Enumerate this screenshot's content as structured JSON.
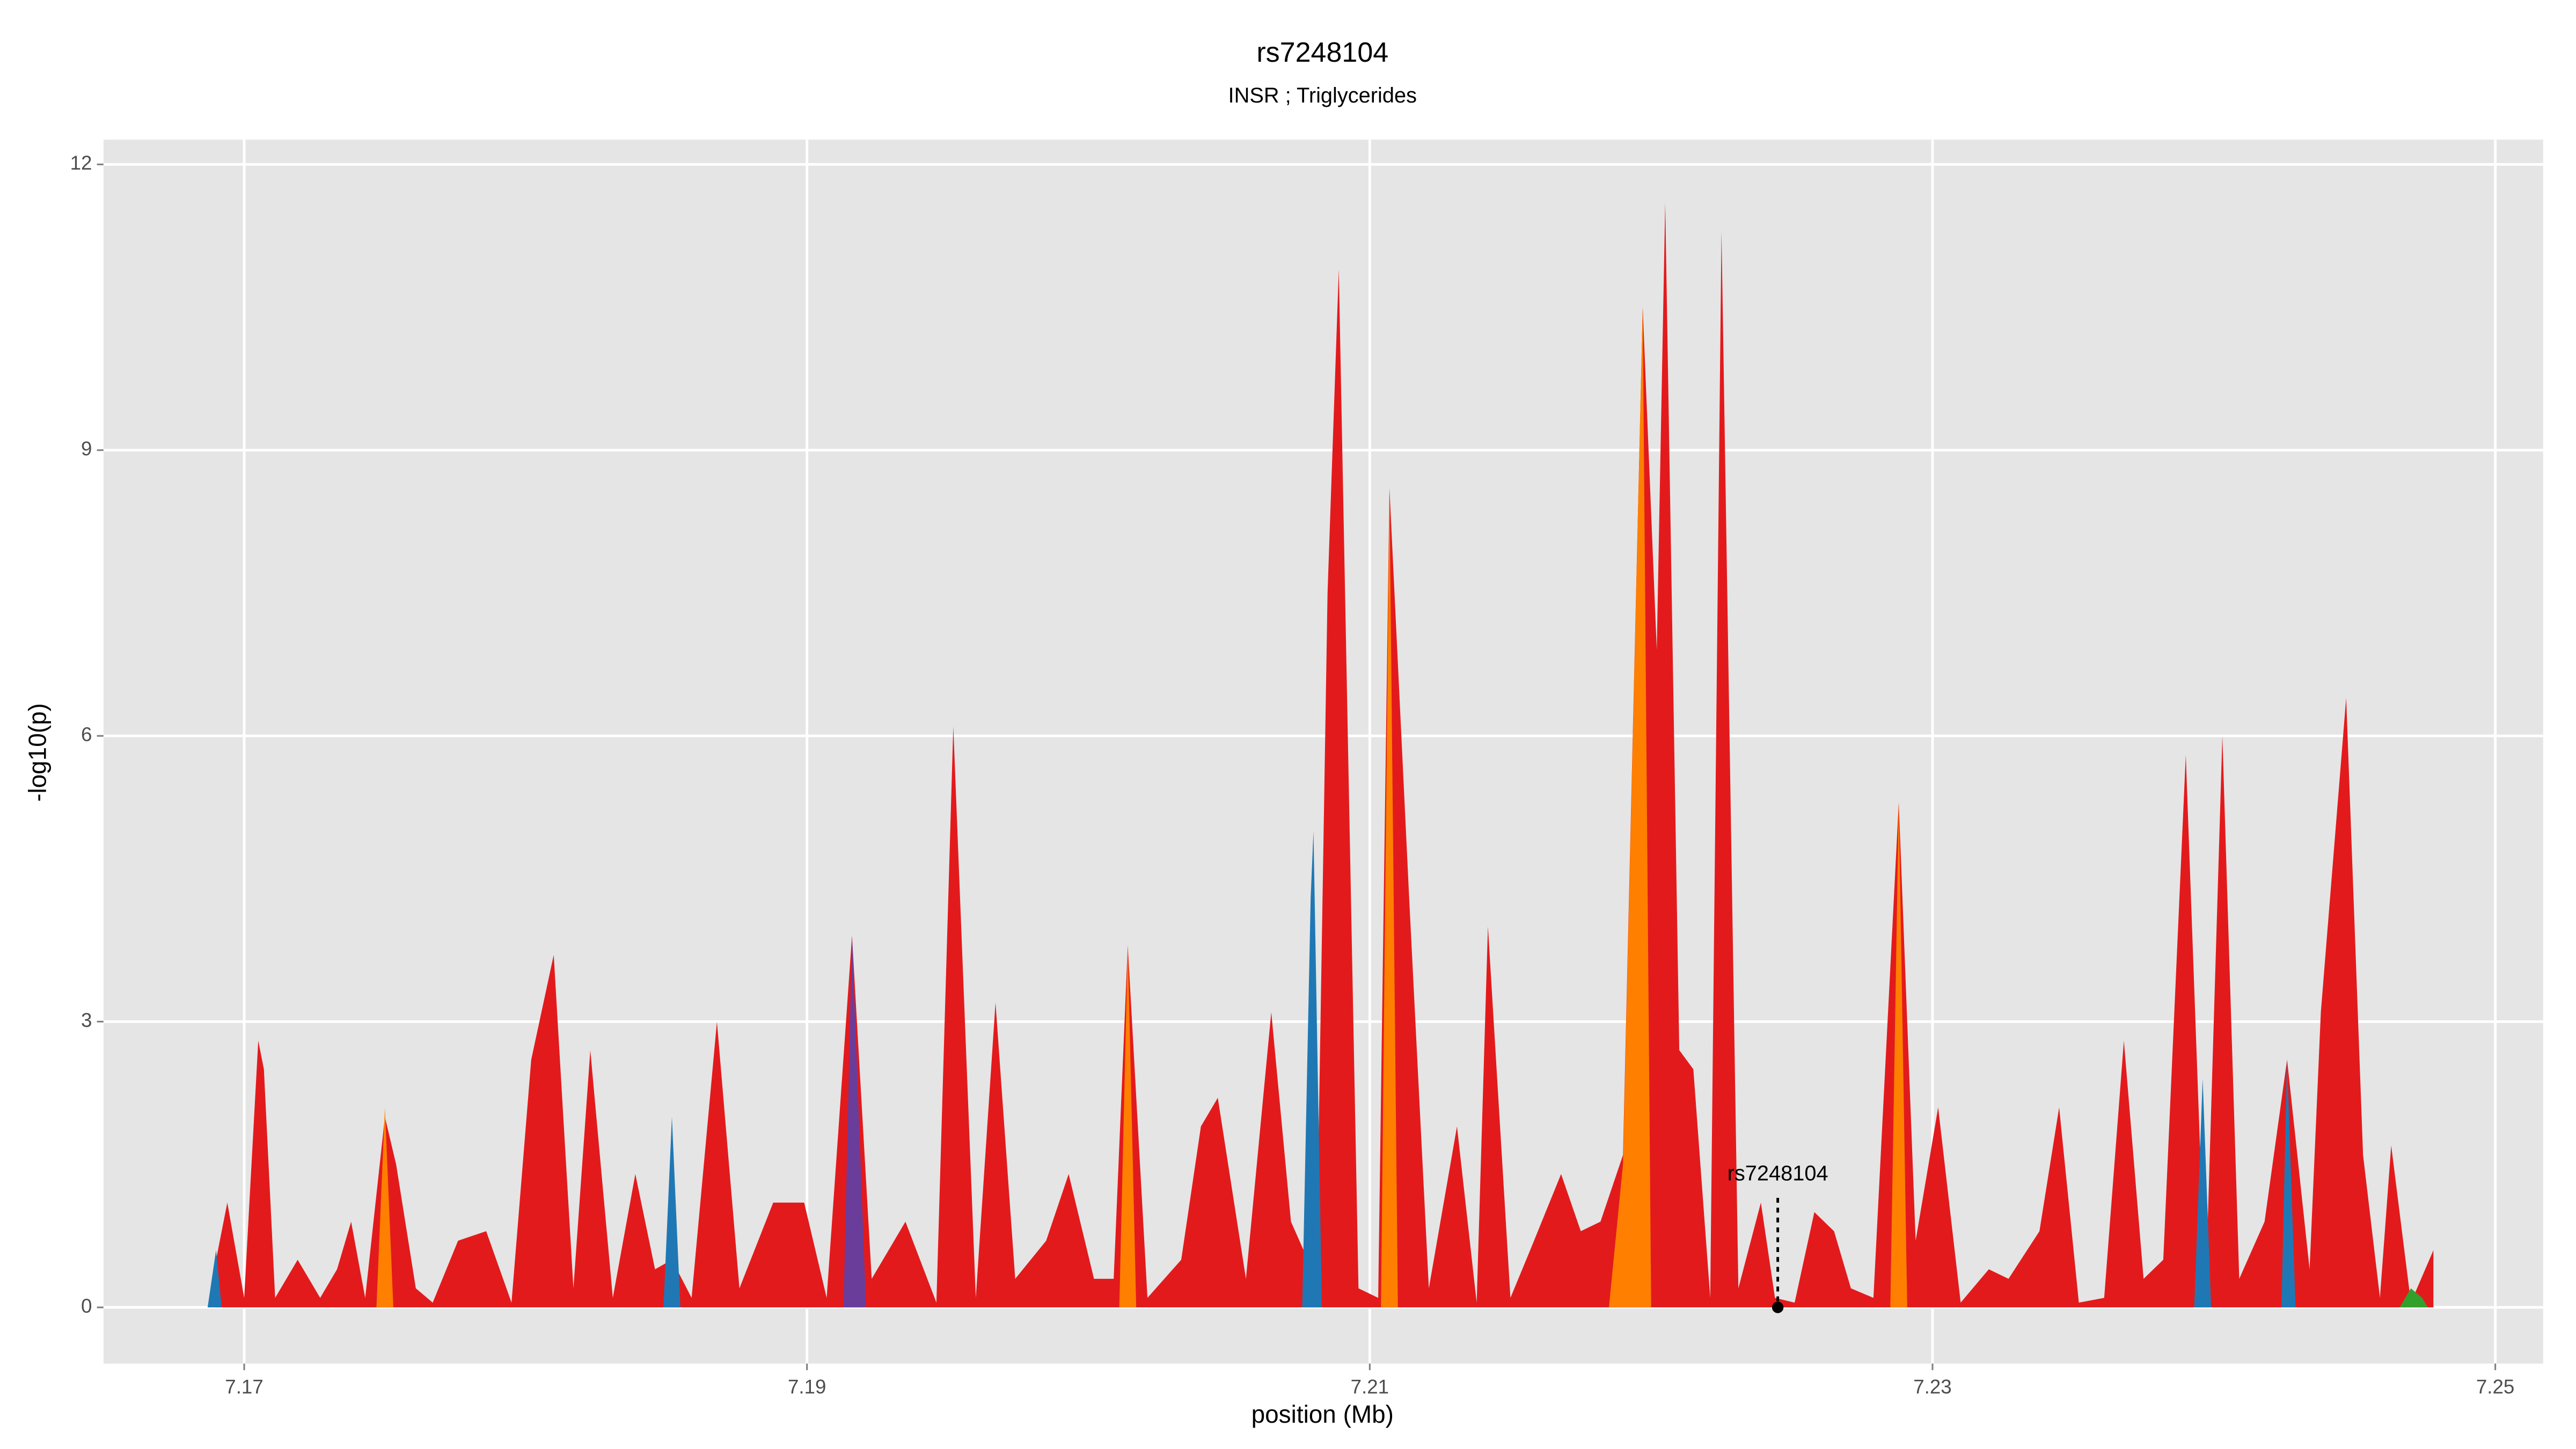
{
  "chart_data": {
    "type": "area",
    "title": "rs7248104",
    "subtitle": "INSR ; Triglycerides",
    "xlabel": "position (Mb)",
    "ylabel": "-log10(p)",
    "xlim": [
      7.165,
      7.2517
    ],
    "ylim": [
      -0.59,
      12.26
    ],
    "xticks": [
      7.17,
      7.19,
      7.21,
      7.23,
      7.25
    ],
    "yticks": [
      0,
      3,
      6,
      9,
      12
    ],
    "grid": true,
    "annotation": {
      "text": "rs7248104",
      "x": 7.2245,
      "y": 1.15
    },
    "series": [
      {
        "color": "#e31a1c",
        "x": [
          7.169,
          7.1694,
          7.17,
          7.1705,
          7.1707,
          7.1711,
          7.1719,
          7.1727,
          7.1733,
          7.1738,
          7.1743,
          7.175,
          7.1754,
          7.1761,
          7.1767,
          7.1776,
          7.1786,
          7.1795,
          7.1802,
          7.181,
          7.1817,
          7.1823,
          7.1831,
          7.1839,
          7.1846,
          7.1852,
          7.1859,
          7.1868,
          7.1876,
          7.1888,
          7.1899,
          7.1907,
          7.1916,
          7.1923,
          7.1935,
          7.1946,
          7.1952,
          7.196,
          7.1967,
          7.1974,
          7.1985,
          7.1993,
          7.2002,
          7.2009,
          7.2014,
          7.2021,
          7.2033,
          7.204,
          7.2046,
          7.2056,
          7.2065,
          7.2072,
          7.2081,
          7.2085,
          7.2089,
          7.2096,
          7.2103,
          7.2107,
          7.2114,
          7.2121,
          7.2131,
          7.2138,
          7.2142,
          7.215,
          7.2157,
          7.2168,
          7.2175,
          7.2182,
          7.219,
          7.2197,
          7.2202,
          7.2205,
          7.221,
          7.2215,
          7.2221,
          7.2225,
          7.2231,
          7.2239,
          7.2244,
          7.2251,
          7.2258,
          7.2265,
          7.2271,
          7.2279,
          7.2288,
          7.2294,
          7.2302,
          7.231,
          7.232,
          7.2327,
          7.2338,
          7.2345,
          7.2352,
          7.2361,
          7.2368,
          7.2375,
          7.2382,
          7.239,
          7.2397,
          7.2403,
          7.2409,
          7.2418,
          7.2426,
          7.2434,
          7.2438,
          7.2447,
          7.2453,
          7.2459,
          7.2463,
          7.247,
          7.2478
        ],
        "values": [
          0.5,
          1.1,
          0.1,
          2.8,
          2.5,
          0.1,
          0.5,
          0.1,
          0.4,
          0.9,
          0.1,
          2.0,
          1.5,
          0.2,
          0.05,
          0.7,
          0.8,
          0.05,
          2.6,
          3.7,
          0.2,
          2.7,
          0.1,
          1.4,
          0.4,
          0.5,
          0.1,
          3.0,
          0.2,
          1.1,
          1.1,
          0.1,
          3.9,
          0.3,
          0.9,
          0.05,
          6.1,
          0.1,
          3.2,
          0.3,
          0.7,
          1.4,
          0.3,
          0.3,
          3.8,
          0.1,
          0.5,
          1.9,
          2.2,
          0.3,
          3.1,
          0.9,
          0.3,
          7.5,
          10.9,
          0.2,
          0.1,
          8.6,
          4.3,
          0.2,
          1.9,
          0.05,
          4.0,
          0.1,
          0.6,
          1.4,
          0.8,
          0.9,
          1.6,
          10.5,
          6.9,
          11.6,
          2.7,
          2.5,
          0.1,
          11.3,
          0.2,
          1.1,
          0.1,
          0.05,
          1.0,
          0.8,
          0.2,
          0.1,
          5.3,
          0.7,
          2.1,
          0.05,
          0.4,
          0.3,
          0.8,
          2.1,
          0.05,
          0.1,
          2.8,
          0.3,
          0.5,
          5.8,
          0.1,
          6.0,
          0.3,
          0.9,
          2.6,
          0.4,
          3.1,
          6.4,
          1.6,
          0.1,
          1.7,
          0.05,
          0.6
        ]
      },
      {
        "color": "#ff7f00",
        "x": [
          7.1747,
          7.175,
          7.1753,
          7.178,
          7.2011,
          7.2014,
          7.2017,
          7.206,
          7.2104,
          7.2107,
          7.211,
          7.215,
          7.2185,
          7.219,
          7.2197,
          7.22,
          7.224,
          7.2285,
          7.2288,
          7.2291
        ],
        "values": [
          0,
          2.1,
          0,
          null,
          0,
          3.8,
          0,
          null,
          0,
          8.6,
          0,
          null,
          0,
          1.5,
          10.5,
          0,
          null,
          0,
          5.3,
          0
        ]
      },
      {
        "color": "#1f78b4",
        "x": [
          7.1687,
          7.169,
          7.1692,
          7.177,
          7.1849,
          7.1852,
          7.1855,
          7.196,
          7.2076,
          7.2079,
          7.208,
          7.2083,
          7.23,
          7.2393,
          7.2396,
          7.2399,
          7.241,
          7.2424,
          7.2426,
          7.2429
        ],
        "values": [
          0,
          0.6,
          0,
          null,
          0,
          2.0,
          0,
          null,
          0,
          4.3,
          5.0,
          0,
          null,
          0,
          2.4,
          0,
          null,
          0,
          2.6,
          0
        ]
      },
      {
        "color": "#6a3d9a",
        "x": [
          7.1913,
          7.1916,
          7.1921
        ],
        "values": [
          0,
          3.9,
          0
        ]
      },
      {
        "color": "#33a02c",
        "x": [
          7.2466,
          7.247,
          7.2474,
          7.2476
        ],
        "values": [
          0,
          0.2,
          0.1,
          0
        ]
      }
    ]
  }
}
